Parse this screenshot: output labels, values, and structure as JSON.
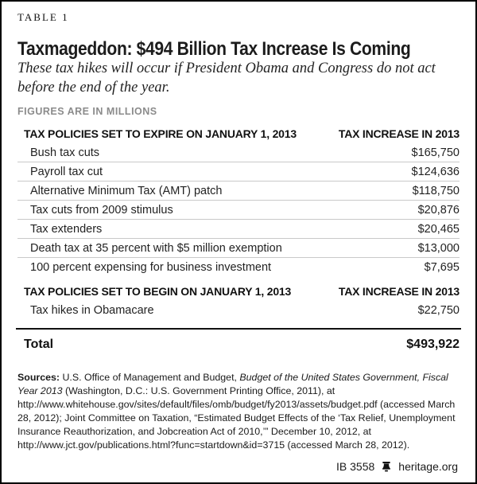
{
  "page": {
    "table_label": "TABLE 1",
    "title": "Taxmageddon: $494 Billion Tax Increase Is Coming",
    "subtitle": "These tax hikes will occur if President Obama and Congress do not act before the end of the year.",
    "figures_note": "FIGURES ARE IN MILLIONS"
  },
  "table": {
    "sections": [
      {
        "header": {
          "label": "TAX POLICIES SET TO EXPIRE ON JANUARY 1, 2013",
          "value": "TAX INCREASE IN 2013"
        },
        "rows": [
          {
            "label": "Bush tax cuts",
            "value": "$165,750"
          },
          {
            "label": "Payroll tax cut",
            "value": "$124,636"
          },
          {
            "label": "Alternative Minimum Tax (AMT) patch",
            "value": "$118,750"
          },
          {
            "label": "Tax cuts from 2009 stimulus",
            "value": "$20,876"
          },
          {
            "label": "Tax extenders",
            "value": "$20,465"
          },
          {
            "label": "Death tax at 35 percent with $5 million exemption",
            "value": "$13,000"
          },
          {
            "label": "100 percent expensing for business investment",
            "value": "$7,695"
          }
        ]
      },
      {
        "header": {
          "label": "TAX POLICIES SET TO BEGIN ON JANUARY 1, 2013",
          "value": "TAX INCREASE IN 2013"
        },
        "rows": [
          {
            "label": "Tax hikes in Obamacare",
            "value": "$22,750"
          }
        ]
      }
    ],
    "total": {
      "label": "Total",
      "value": "$493,922"
    }
  },
  "sources": {
    "segments": [
      {
        "text": "Sources: ",
        "style": "bold"
      },
      {
        "text": "U.S. Office of Management and Budget, ",
        "style": "normal"
      },
      {
        "text": "Budget of the United States Government, Fiscal Year 2013",
        "style": "italic"
      },
      {
        "text": " (Washington, D.C.: U.S. Government Printing Office, 2011), at http://www.whitehouse.gov/sites/default/files/omb/budget/fy2013/assets/budget.pdf (accessed March 28, 2012); Joint Committee on Taxation, “Estimated Budget Effects of the ‘Tax Relief, Unemployment Insurance Reauthorization, and Jobcreation Act of 2010,’” December 10, 2012, at http://www.jct.gov/publications.html?func=startdown&id=3715 (accessed March 28, 2012).",
        "style": "normal"
      }
    ]
  },
  "footer": {
    "report_id": "IB 3558",
    "bell_icon": "liberty-bell-icon",
    "site": "heritage.org"
  },
  "colors": {
    "background": "#ffffff",
    "border": "#000000",
    "text": "#1a1a1a",
    "muted_gray": "#8b8b8b",
    "row_separator": "#c9c9c9",
    "total_rule": "#111111"
  }
}
